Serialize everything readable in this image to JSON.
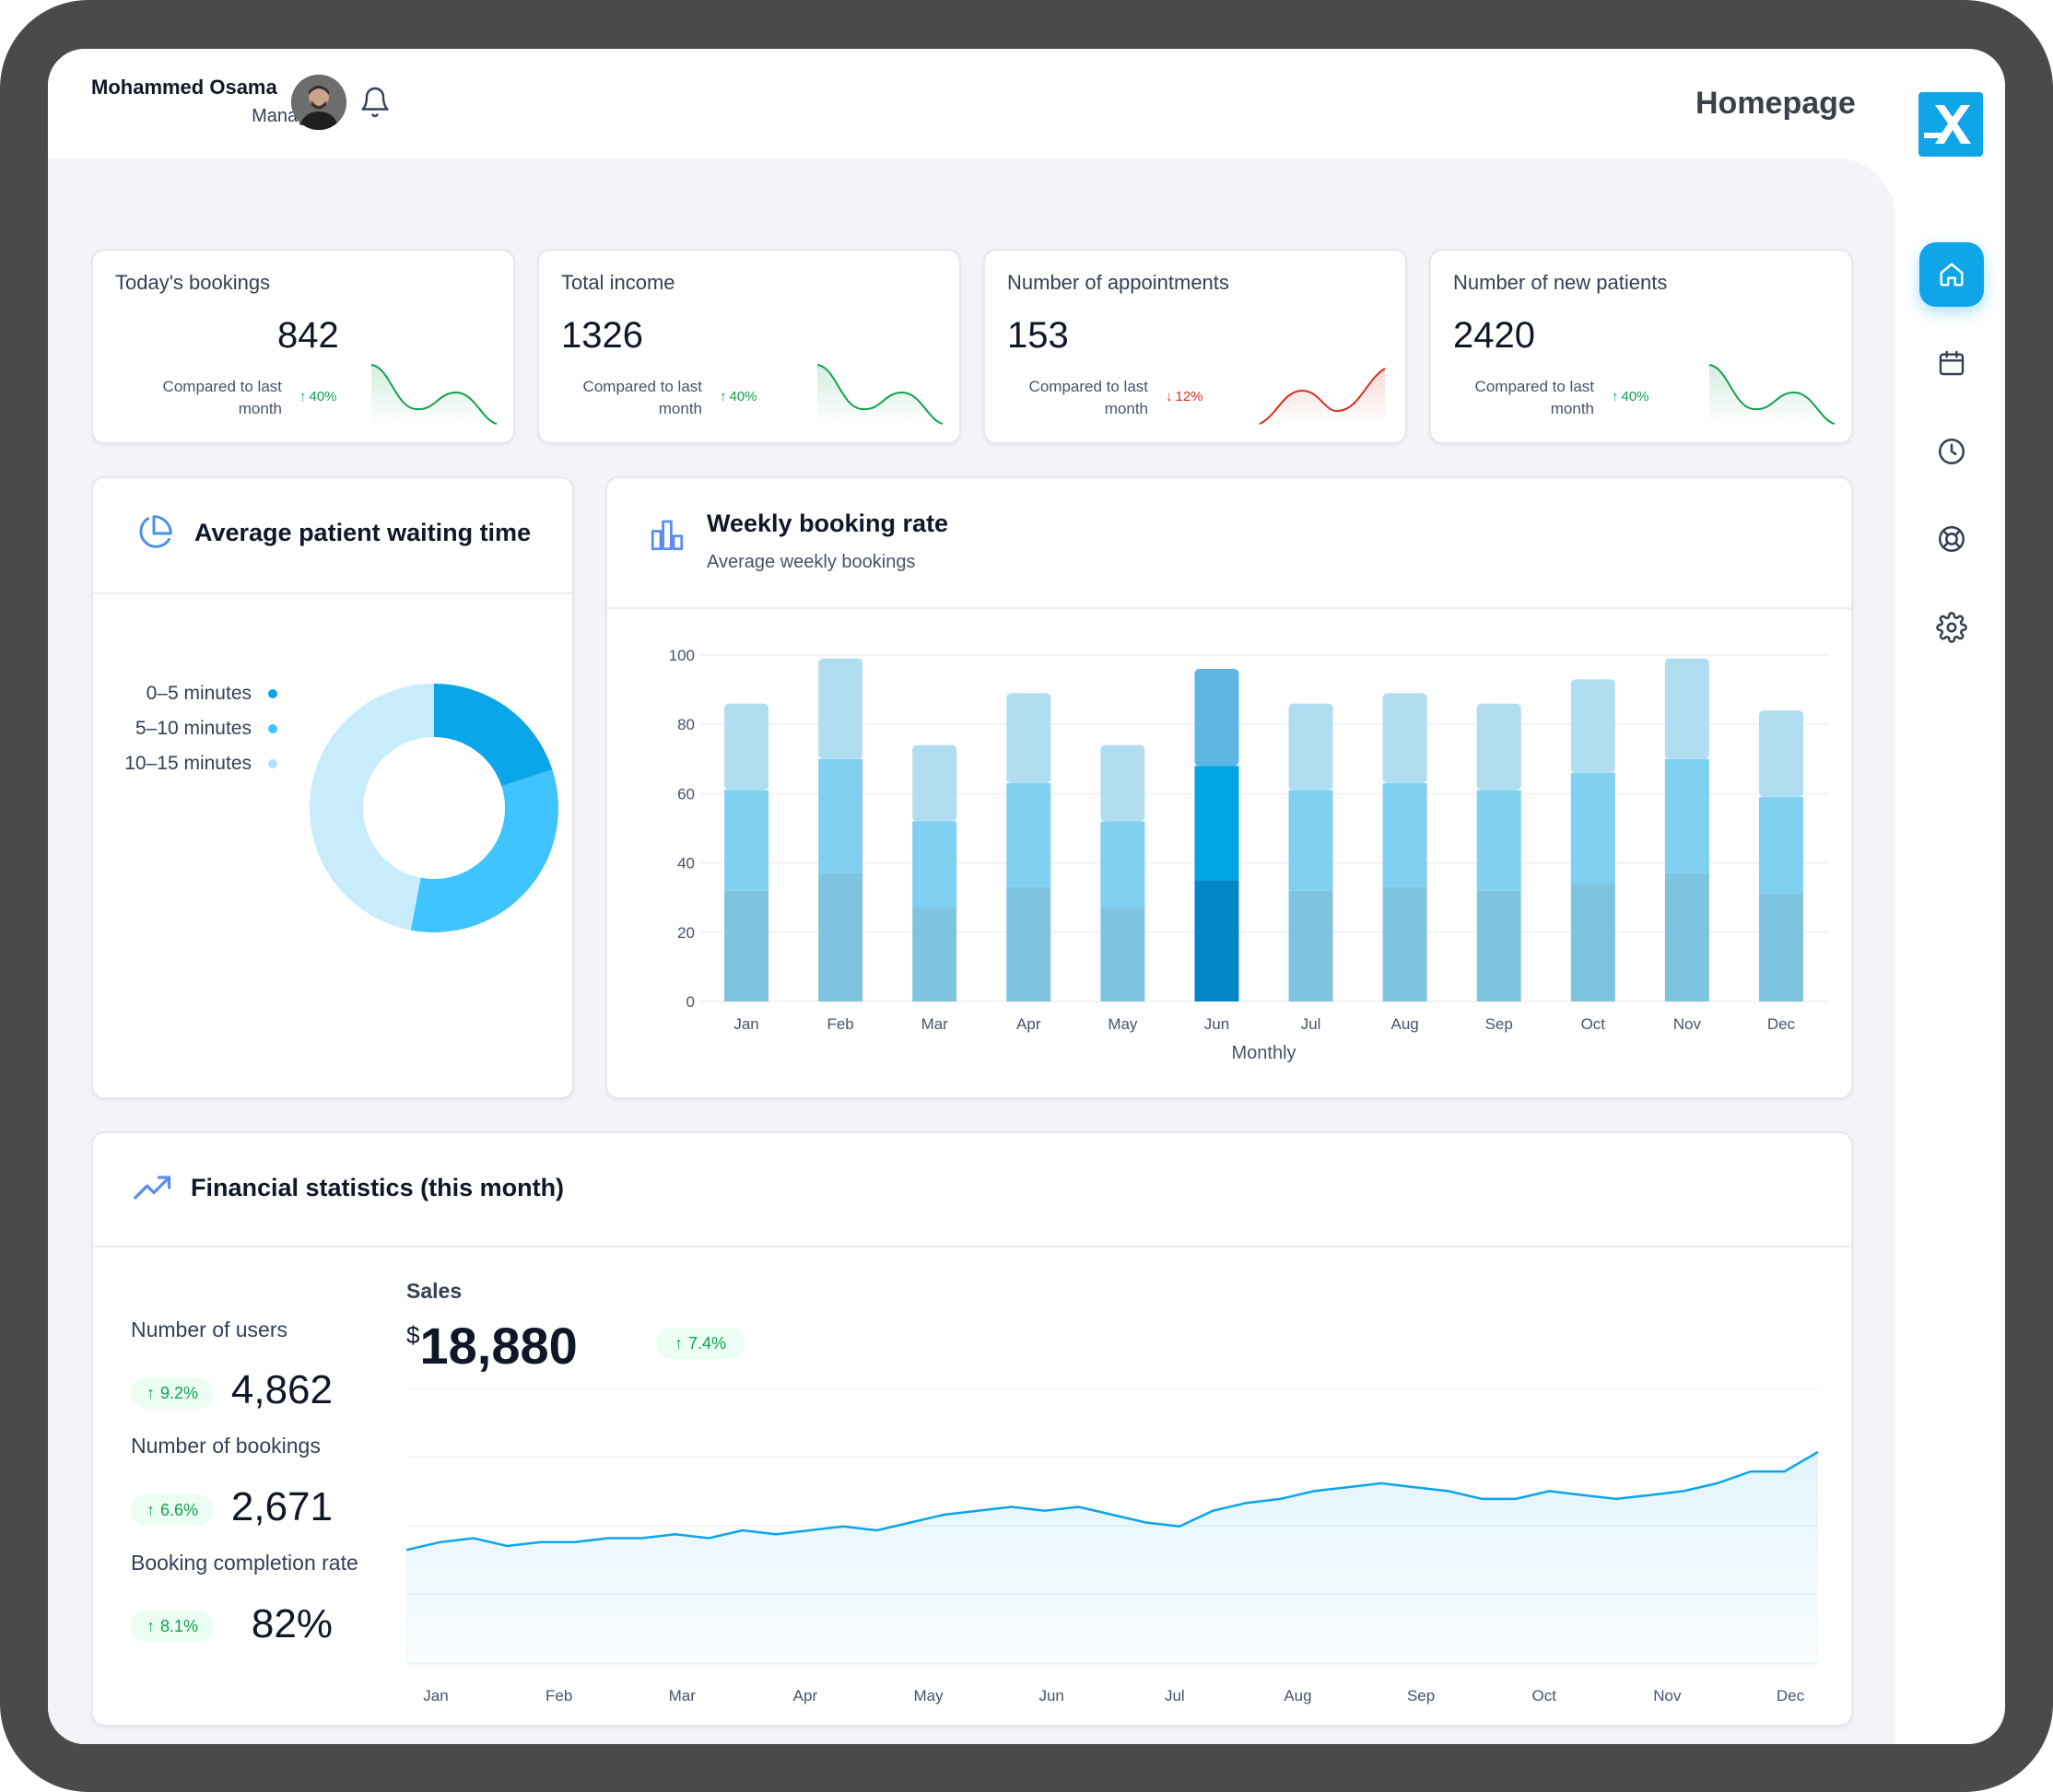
{
  "header": {
    "user_name": "Mohammed Osama",
    "user_role": "Manager",
    "page_title": "Homepage"
  },
  "stats": [
    {
      "title": "Today's bookings",
      "value": "842",
      "compare": "Compared to last month",
      "change": "40%",
      "direction": "up"
    },
    {
      "title": "Total income",
      "value": "1326",
      "compare": "Compared to last month",
      "change": "40%",
      "direction": "up"
    },
    {
      "title": "Number of appointments",
      "value": "153",
      "compare": "Compared to last month",
      "change": "12%",
      "direction": "down"
    },
    {
      "title": "Number of new patients",
      "value": "2420",
      "compare": "Compared to last month",
      "change": "40%",
      "direction": "up"
    }
  ],
  "waiting_time": {
    "title": "Average patient waiting time",
    "legend": [
      "0–5 minutes",
      "5–10 minutes",
      "10–15 minutes"
    ],
    "colors": [
      "#0ba5e9",
      "#40c4ff",
      "#c8ecfc"
    ],
    "chart_data": {
      "type": "pie",
      "categories": [
        "0–5 minutes",
        "5–10 minutes",
        "10–15 minutes"
      ],
      "values": [
        20,
        33,
        47
      ]
    }
  },
  "weekly": {
    "title": "Weekly booking rate",
    "subtitle": "Average weekly bookings",
    "xlabel": "Monthly",
    "highlight_month": "Jun",
    "chart_data": {
      "type": "bar",
      "stacked": true,
      "categories": [
        "Jan",
        "Feb",
        "Mar",
        "Apr",
        "May",
        "Jun",
        "Jul",
        "Aug",
        "Sep",
        "Oct",
        "Nov",
        "Dec"
      ],
      "series": [
        {
          "values": [
            32,
            37,
            27,
            33,
            27,
            35,
            32,
            33,
            32,
            34,
            37,
            31
          ]
        },
        {
          "values": [
            29,
            33,
            25,
            30,
            25,
            33,
            29,
            30,
            29,
            32,
            33,
            28
          ]
        },
        {
          "values": [
            25,
            29,
            22,
            26,
            22,
            28,
            25,
            26,
            25,
            27,
            29,
            25
          ]
        }
      ],
      "yticks": [
        0,
        20,
        40,
        60,
        80,
        100
      ],
      "ylim": [
        0,
        100
      ],
      "grid": true
    }
  },
  "financial": {
    "title": "Financial statistics (this month)",
    "metrics": [
      {
        "label": "Number of users",
        "change": "9.2%",
        "value": "4,862"
      },
      {
        "label": "Number of bookings",
        "change": "6.6%",
        "value": "2,671"
      },
      {
        "label": "Booking completion rate",
        "change": "8.1%",
        "value": "82%"
      }
    ],
    "sales": {
      "label": "Sales",
      "currency": "$",
      "value": "18,880",
      "change": "7.4%"
    },
    "chart_data": {
      "type": "area",
      "x_labels": [
        "Jan",
        "Feb",
        "Mar",
        "Apr",
        "May",
        "Jun",
        "Jul",
        "Aug",
        "Sep",
        "Oct",
        "Nov",
        "Dec"
      ],
      "values": [
        30,
        32,
        33,
        31,
        32,
        32,
        33,
        33,
        34,
        33,
        35,
        34,
        35,
        36,
        35,
        37,
        39,
        40,
        41,
        40,
        41,
        39,
        37,
        36,
        40,
        42,
        43,
        45,
        46,
        47,
        46,
        45,
        43,
        43,
        45,
        44,
        43,
        44,
        45,
        47,
        50,
        50,
        55
      ]
    }
  },
  "colors": {
    "accent": "#0ea5e9",
    "positive": "#12a150",
    "negative": "#d92d20"
  }
}
